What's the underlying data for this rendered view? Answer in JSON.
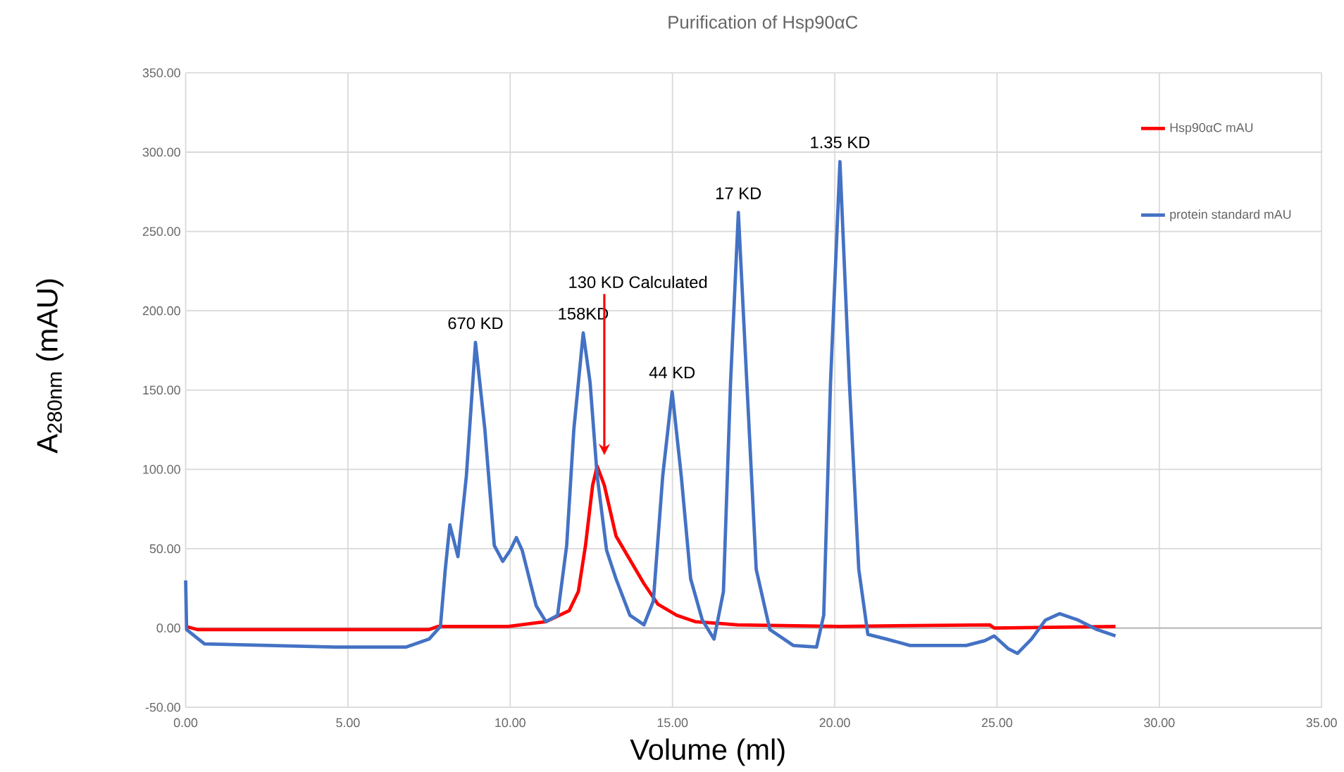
{
  "chart_data": {
    "type": "line",
    "title": "Purification of Hsp90αC",
    "xlabel": "Volume (ml)",
    "ylabel": "A$_{280nm}$ (mAU)",
    "xlim": [
      0,
      35
    ],
    "xticks": [
      {
        "value": 0,
        "label": "0.00"
      },
      {
        "value": 5,
        "label": "5.00"
      },
      {
        "value": 10,
        "label": "10.00"
      },
      {
        "value": 15,
        "label": "15.00"
      },
      {
        "value": 20,
        "label": "20.00"
      },
      {
        "value": 25,
        "label": "25.00"
      },
      {
        "value": 30,
        "label": "30.00"
      },
      {
        "value": 35,
        "label": "35.00"
      }
    ],
    "ylim": [
      -50,
      350
    ],
    "yticks": [
      {
        "value": -50,
        "label": "-50.00"
      },
      {
        "value": 0,
        "label": "0.00"
      },
      {
        "value": 50,
        "label": "50.00"
      },
      {
        "value": 100,
        "label": "100.00"
      },
      {
        "value": 150,
        "label": "150.00"
      },
      {
        "value": 200,
        "label": "200.00"
      },
      {
        "value": 250,
        "label": "250.00"
      },
      {
        "value": 300,
        "label": "300.00"
      },
      {
        "value": 350,
        "label": "350.00"
      }
    ],
    "grid": true,
    "legend": "top right",
    "marker": "none",
    "line_style": "solid",
    "series": [
      {
        "name": "Hsp90αC  mAU",
        "color": "#ff0000",
        "x": [
          0,
          0.36,
          7.5,
          7.78,
          9.94,
          11.1,
          11.82,
          12.1,
          12.32,
          12.54,
          12.68,
          12.9,
          13.26,
          13.69,
          14.12,
          14.55,
          15.13,
          15.7,
          17.0,
          20.16,
          24.77,
          24.91,
          28.65
        ],
        "values": [
          1,
          -1,
          -1,
          1,
          1,
          4,
          11,
          23,
          52,
          90,
          102,
          90,
          58,
          43,
          28,
          15,
          8,
          4,
          2,
          1,
          2,
          0,
          1
        ]
      },
      {
        "name": "protein standard  mAU",
        "color": "#4472c4",
        "x": [
          0,
          0.03,
          0.58,
          4.6,
          6.8,
          7.5,
          7.85,
          8.0,
          8.14,
          8.39,
          8.65,
          8.93,
          9.22,
          9.51,
          9.77,
          10.0,
          10.19,
          10.37,
          10.8,
          11.1,
          11.46,
          11.74,
          11.96,
          12.25,
          12.46,
          12.68,
          12.97,
          13.26,
          13.69,
          14.12,
          14.41,
          14.7,
          14.99,
          15.27,
          15.56,
          15.92,
          16.28,
          16.57,
          16.79,
          17.03,
          17.29,
          17.58,
          18.0,
          18.72,
          19.44,
          19.66,
          19.87,
          20.16,
          20.45,
          20.74,
          21.02,
          21.6,
          22.32,
          24.05,
          24.62,
          24.91,
          25.34,
          25.63,
          26.06,
          26.49,
          26.93,
          27.5,
          28.08,
          28.65
        ],
        "values": [
          30,
          -1,
          -10,
          -12,
          -12,
          -7,
          1,
          37,
          65,
          45,
          96,
          180,
          125,
          52,
          42,
          49,
          57,
          49,
          14,
          4,
          8,
          52,
          125,
          186,
          155,
          96,
          49,
          31,
          8,
          2,
          17,
          96,
          149,
          96,
          31,
          5,
          -7,
          23,
          155,
          262,
          155,
          37,
          -1,
          -11,
          -12,
          8,
          155,
          294,
          155,
          37,
          -4,
          -7,
          -11,
          -11,
          -8,
          -5,
          -13,
          -16,
          -7,
          5,
          9,
          5,
          -1,
          -5
        ]
      }
    ],
    "annotations": [
      {
        "text": "670 KD",
        "x": 8.93,
        "y": 180
      },
      {
        "text": "158KD",
        "x": 12.25,
        "y": 186
      },
      {
        "text": "130 KD Calculated",
        "x": 12.9,
        "y": 109
      },
      {
        "text": "44 KD",
        "x": 14.99,
        "y": 149
      },
      {
        "text": "17 KD",
        "x": 17.03,
        "y": 262
      },
      {
        "text": "1.35 KD",
        "x": 20.16,
        "y": 294
      }
    ]
  }
}
